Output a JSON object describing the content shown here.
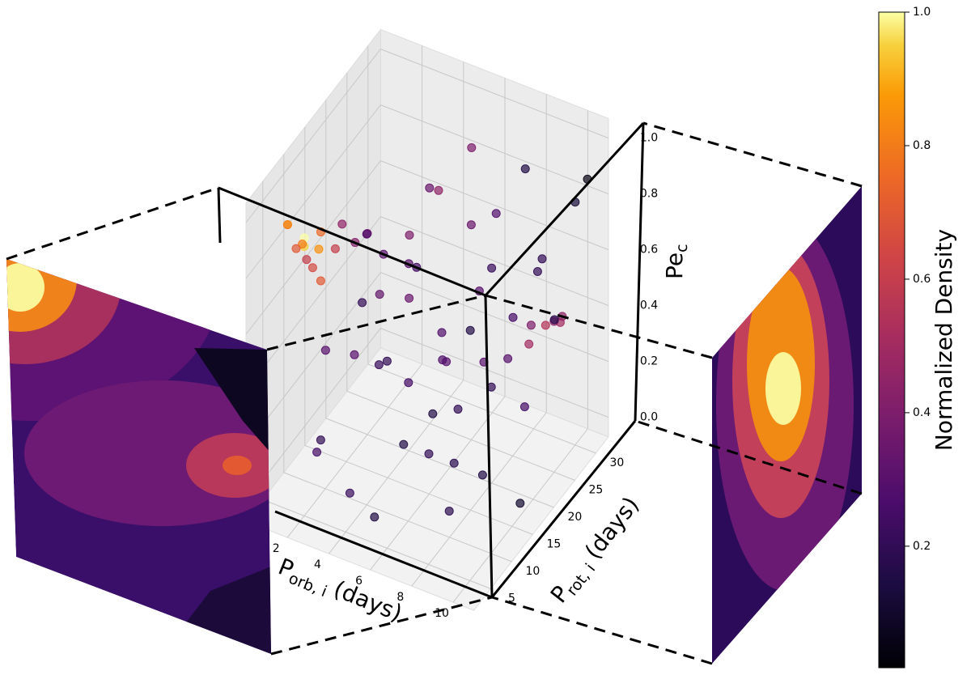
{
  "chart_data": {
    "type": "scatter3d",
    "xlabel": {
      "symbol": "P",
      "subscript": "orb, i",
      "unit": "(days)"
    },
    "ylabel": {
      "symbol": "P",
      "subscript": "rot, i",
      "unit": "(days)"
    },
    "zlabel": {
      "symbol": "Pe",
      "subscript": "c"
    },
    "colorbar_label": "Normalized Density",
    "colormap": "inferno",
    "xlim": [
      0,
      11
    ],
    "ylim": [
      1,
      33
    ],
    "zlim": [
      -0.07,
      1.07
    ],
    "xticks": [
      2,
      4,
      6,
      8,
      10
    ],
    "yticks": [
      5,
      10,
      15,
      20,
      25,
      30
    ],
    "zticks": [
      {
        "value": 0,
        "label": "0.0"
      },
      0.2,
      0.4,
      0.6,
      0.8,
      {
        "value": 1,
        "label": "1.0"
      }
    ],
    "clim": [
      0.018,
      1.0
    ],
    "cticks": [
      0.2,
      0.4,
      0.6,
      0.8,
      {
        "value": 1,
        "label": "1.0"
      }
    ],
    "grid": true,
    "x": [
      1.2,
      1.8,
      2.2,
      1.5,
      2.8,
      1.0,
      2.5,
      3.0,
      1.6,
      2.0,
      3.5,
      1.3,
      10.2,
      10.5,
      9.8,
      10.8,
      10,
      9.5,
      4,
      5,
      6,
      7,
      8,
      3,
      2,
      9,
      5,
      6,
      7,
      4,
      3,
      8,
      10,
      9,
      2,
      5,
      6,
      7,
      8,
      4,
      3,
      10,
      11,
      1,
      6,
      5,
      9,
      2,
      7,
      4,
      8,
      3,
      10,
      6,
      5,
      7,
      9,
      1,
      11,
      8,
      4,
      6,
      2,
      3,
      10,
      7,
      5,
      9
    ],
    "y": [
      5,
      6,
      4,
      7,
      5,
      8,
      6,
      4,
      3,
      7,
      5,
      9,
      22,
      24,
      20,
      23,
      25,
      22,
      20,
      15,
      25,
      10,
      28,
      12,
      8,
      5,
      30,
      18,
      22,
      6,
      18,
      12,
      8,
      15,
      20,
      24,
      5,
      30,
      20,
      28,
      25,
      30,
      12,
      15,
      12,
      8,
      26,
      30,
      16,
      14,
      6,
      4,
      18,
      28,
      20,
      4,
      10,
      22,
      28,
      32,
      10,
      2,
      14,
      32,
      14,
      26,
      4,
      30
    ],
    "z": [
      0.95,
      0.9,
      0.92,
      0.85,
      0.97,
      0.8,
      0.88,
      0.82,
      1.0,
      0.78,
      0.93,
      0.75,
      0.52,
      0.5,
      0.48,
      0.55,
      0.47,
      0.5,
      0.6,
      0.3,
      0.7,
      0.2,
      0.9,
      0.4,
      0.1,
      0.15,
      0.85,
      0.45,
      0.55,
      0.05,
      0.5,
      0.35,
      0.25,
      0.4,
      0.65,
      0.2,
      0.6,
      0.3,
      0.7,
      0.1,
      0.35,
      0.8,
      0.1,
      0.3,
      0.8,
      0.5,
      0.6,
      0.45,
      0.05,
      0.75,
      0.45,
      0.25,
      0.3,
      0.15,
      0.9,
      0.35,
      0.7,
      0.55,
      0.95,
      0.5,
      0.9,
      0.1,
      0.8,
      0.6,
      0.55,
      0.75,
      0.8,
      0.35
    ],
    "c": [
      0.9,
      1.0,
      0.95,
      0.8,
      0.75,
      0.7,
      0.85,
      0.7,
      0.8,
      0.65,
      0.6,
      0.6,
      0.55,
      0.5,
      0.5,
      0.45,
      0.45,
      0.4,
      0.3,
      0.25,
      0.35,
      0.2,
      0.15,
      0.3,
      0.25,
      0.18,
      0.4,
      0.28,
      0.3,
      0.22,
      0.33,
      0.2,
      0.15,
      0.2,
      0.38,
      0.3,
      0.2,
      0.25,
      0.22,
      0.28,
      0.35,
      0.12,
      0.1,
      0.3,
      0.25,
      0.22,
      0.2,
      0.4,
      0.18,
      0.3,
      0.15,
      0.2,
      0.25,
      0.3,
      0.35,
      0.15,
      0.15,
      0.42,
      0.05,
      0.2,
      0.28,
      0.15,
      0.45,
      0.45,
      0.3,
      0.28,
      0.2,
      0.18
    ]
  }
}
